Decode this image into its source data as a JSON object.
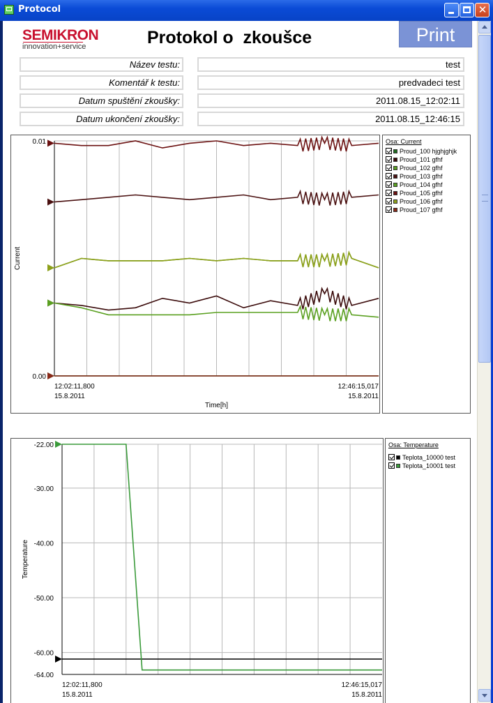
{
  "window": {
    "title": "Protocol"
  },
  "header": {
    "logo_brand": "SEMIKRON",
    "logo_tagline": "innovation+service",
    "title": "Protokol o  zkoušce",
    "print_label": "Print"
  },
  "fields": [
    {
      "label": "Název testu:",
      "value": "test"
    },
    {
      "label": "Komentář k testu:",
      "value": "predvadeci test"
    },
    {
      "label": "Datum spuštění zkoušky:",
      "value": "2011.08.15_12:02:11"
    },
    {
      "label": "Datum ukončení zkoušky:",
      "value": "2011.08.15_12:46:15"
    }
  ],
  "chart_data": [
    {
      "type": "line",
      "ylabel": "Current",
      "xlabel": "Time[h]",
      "y_tick_labels": [
        "0.01",
        "0.00"
      ],
      "ylim": [
        0,
        0.01
      ],
      "x_start_label": [
        "12:02:11,800",
        "15.8.2011"
      ],
      "x_end_label": [
        "12:46:15,017",
        "15.8.2011"
      ],
      "grid": true,
      "legend_position": "right",
      "legend_title": "Osa: Current",
      "series": [
        {
          "name": "Proud_100 hjghjghjk",
          "color": "#1f6b1f",
          "values": [
            0.0,
            0.0,
            0.0,
            0.0,
            0.0,
            0.0,
            0.0,
            0.0,
            0.0,
            0.0,
            0.0,
            0.0,
            0.0
          ]
        },
        {
          "name": "Proud_101 gfhf",
          "color": "#3a0a0a",
          "values": [
            0.0031,
            0.003,
            0.0028,
            0.0029,
            0.0033,
            0.0031,
            0.0034,
            0.0029,
            0.0032,
            0.003,
            0.0035,
            0.003,
            0.0033
          ]
        },
        {
          "name": "Proud_102 gfhf",
          "color": "#5aa020",
          "values": [
            0.0031,
            0.0029,
            0.0026,
            0.0026,
            0.0026,
            0.0026,
            0.0027,
            0.0027,
            0.0027,
            0.0027,
            0.0026,
            0.0026,
            0.0025
          ]
        },
        {
          "name": "Proud_103 gfhf",
          "color": "#4a1010",
          "values": [
            0.0074,
            0.0075,
            0.0076,
            0.0077,
            0.0076,
            0.0075,
            0.0076,
            0.0077,
            0.0075,
            0.0076,
            0.0075,
            0.0076,
            0.0077
          ]
        },
        {
          "name": "Proud_104 gfhf",
          "color": "#5aa020",
          "values": [
            0.0046,
            0.005,
            0.0049,
            0.0049,
            0.0049,
            0.005,
            0.0049,
            0.005,
            0.0049,
            0.0049,
            0.0049,
            0.005,
            0.0046
          ]
        },
        {
          "name": "Proud_105 gfhf",
          "color": "#6b1010",
          "values": [
            0.0099,
            0.0098,
            0.0098,
            0.01,
            0.0097,
            0.0099,
            0.01,
            0.0098,
            0.0099,
            0.0098,
            0.0099,
            0.0098,
            0.0099
          ]
        },
        {
          "name": "Proud_106 gfhf",
          "color": "#8ea01a",
          "values": [
            0.0046,
            0.005,
            0.0049,
            0.0049,
            0.0049,
            0.005,
            0.0049,
            0.005,
            0.0049,
            0.0049,
            0.0049,
            0.005,
            0.0046
          ]
        },
        {
          "name": "Proud_107 gfhf",
          "color": "#8a2a1a",
          "values": [
            0.0,
            0.0,
            0.0,
            0.0,
            0.0,
            0.0,
            0.0,
            0.0,
            0.0,
            0.0,
            0.0,
            0.0,
            0.0
          ]
        }
      ]
    },
    {
      "type": "line",
      "ylabel": "Temperature",
      "xlabel": "",
      "y_tick_labels": [
        "-22.00",
        "-30.00",
        "-40.00",
        "-50.00",
        "-60.00",
        "-64.00"
      ],
      "ylim": [
        -64,
        -22
      ],
      "x_start_label": [
        "12:02:11,800",
        "15.8.2011"
      ],
      "x_end_label": [
        "12:46:15,017",
        "15.8.2011"
      ],
      "grid": true,
      "legend_position": "right",
      "legend_title": "Osa: Temperature",
      "series": [
        {
          "name": "Teplota_10000 test",
          "color": "#000000",
          "points": [
            [
              0,
              -61.2
            ],
            [
              1,
              -61.2
            ]
          ]
        },
        {
          "name": "Teplota_10001 test",
          "color": "#3a9a3a",
          "points": [
            [
              0,
              -22.0
            ],
            [
              0.2,
              -22.0
            ],
            [
              0.25,
              -63.2
            ],
            [
              1,
              -63.2
            ]
          ]
        }
      ]
    }
  ]
}
